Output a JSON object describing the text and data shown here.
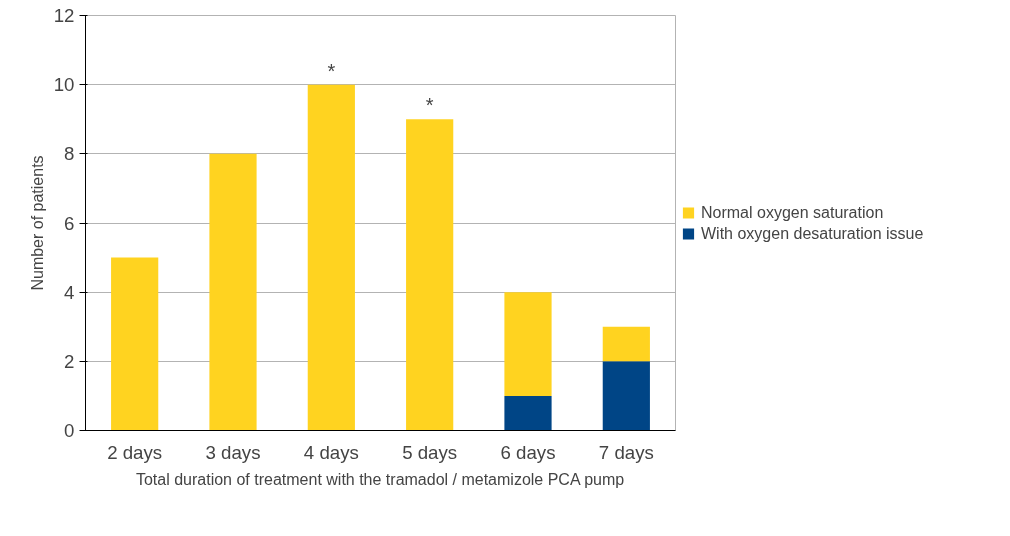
{
  "chart_data": {
    "type": "bar",
    "stacked": true,
    "xlabel": "Total duration of treatment with the tramadol / metamizole PCA pump",
    "ylabel": "Number of patients",
    "categories": [
      "2 days",
      "3 days",
      "4 days",
      "5 days",
      "6 days",
      "7 days"
    ],
    "series": [
      {
        "name": "With oxygen desaturation issue",
        "color": "#004586",
        "values": [
          0,
          0,
          0,
          0,
          1,
          2
        ]
      },
      {
        "name": "Normal oxygen saturation",
        "color": "#ffd320",
        "values": [
          5,
          8,
          10,
          9,
          3,
          1
        ]
      }
    ],
    "ylim": [
      0,
      12
    ],
    "yticks": [
      0,
      2,
      4,
      6,
      8,
      10,
      12
    ],
    "grid": "y",
    "legend": "right",
    "annotations": [
      {
        "text": "*",
        "x": "4 days",
        "y": 10
      },
      {
        "text": "*",
        "x": "5 days",
        "y": 9
      }
    ]
  }
}
